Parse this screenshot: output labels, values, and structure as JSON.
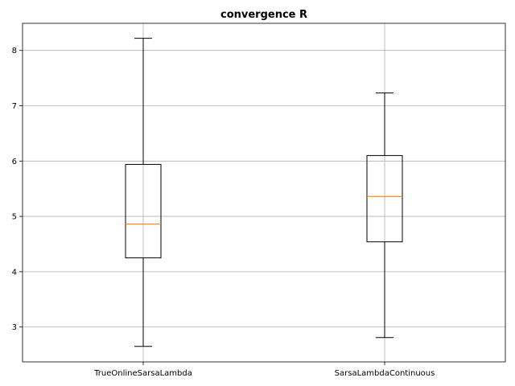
{
  "chart_data": {
    "type": "box",
    "title": "convergence R",
    "xlabel": "",
    "ylabel": "",
    "categories": [
      "TrueOnlineSarsaLambda",
      "SarsaLambdaContinuous"
    ],
    "boxes": [
      {
        "name": "TrueOnlineSarsaLambda",
        "whislo": 2.65,
        "q1": 4.25,
        "med": 4.86,
        "q3": 5.94,
        "whishi": 8.22
      },
      {
        "name": "SarsaLambdaContinuous",
        "whislo": 2.81,
        "q1": 4.54,
        "med": 5.36,
        "q3": 6.1,
        "whishi": 7.23
      }
    ],
    "ylim": [
      2.37,
      8.49
    ],
    "yticks": [
      3,
      4,
      5,
      6,
      7,
      8
    ],
    "grid": true,
    "colors": {
      "median": "#ff7f0e",
      "box": "#000000",
      "grid": "#b0b0b0"
    }
  }
}
